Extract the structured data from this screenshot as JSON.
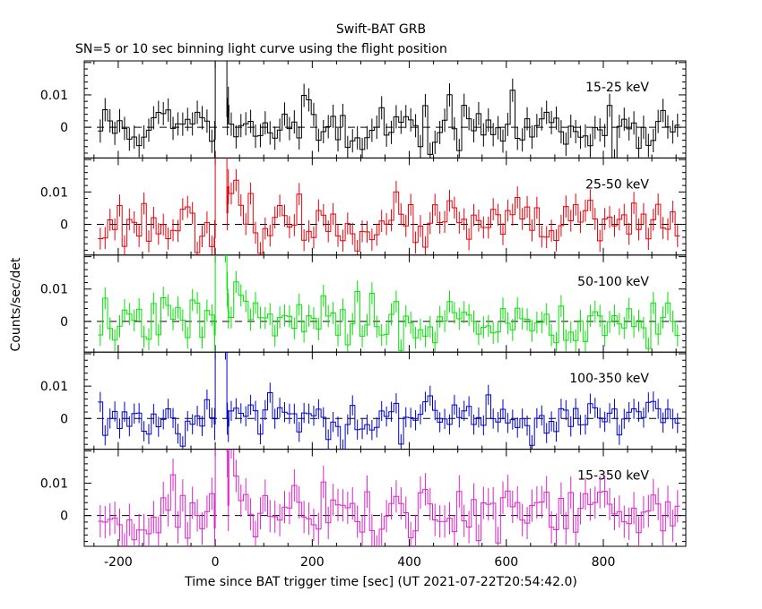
{
  "title": "Swift-BAT GRB",
  "subtitle": "SN=5 or 10 sec binning light curve using the flight position",
  "ylabel": "Counts/sec/det",
  "xlabel": "Time since BAT trigger time [sec] (UT 2021-07-22T20:54:42.0)",
  "chart_data": {
    "type": "line",
    "title": "Swift-BAT GRB",
    "subtitle": "SN=5 or 10 sec binning light curve using the flight position",
    "xlabel": "Time since BAT trigger time [sec] (UT 2021-07-22T20:54:42.0)",
    "ylabel": "Counts/sec/det",
    "xlim": [
      -270,
      970
    ],
    "ylim": [
      -0.0095,
      0.0205
    ],
    "x_ticks": [
      "-200",
      "0",
      "200",
      "400",
      "600",
      "800"
    ],
    "y_ticks": [
      "0",
      "0.01"
    ],
    "zero_line": "dashed",
    "grid": false,
    "series": [
      {
        "name": "15-25 keV",
        "color": "#000000",
        "noise": 0.0042,
        "err": 0.0036,
        "peak": 0.045,
        "tail": 0.008,
        "tailTau": 45,
        "seed": 11
      },
      {
        "name": "25-50 keV",
        "color": "#e8000b",
        "noise": 0.004,
        "err": 0.0034,
        "peak": 0.06,
        "tail": 0.013,
        "tailTau": 40,
        "seed": 23
      },
      {
        "name": "50-100 keV",
        "color": "#00e600",
        "noise": 0.0038,
        "err": 0.0034,
        "peak": 0.055,
        "tail": 0.012,
        "tailTau": 40,
        "seed": 37
      },
      {
        "name": "100-350 keV",
        "color": "#0000cc",
        "noise": 0.0036,
        "err": 0.0031,
        "peak": 0.05,
        "tail": 0.006,
        "tailTau": 30,
        "seed": 53
      },
      {
        "name": "15-350 keV",
        "color": "#dd22cc",
        "noise": 0.0055,
        "err": 0.005,
        "peak": 0.08,
        "tail": 0.02,
        "tailTau": 45,
        "seed": 71
      }
    ]
  }
}
